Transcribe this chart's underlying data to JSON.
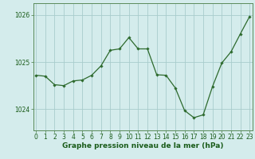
{
  "x": [
    0,
    1,
    2,
    3,
    4,
    5,
    6,
    7,
    8,
    9,
    10,
    11,
    12,
    13,
    14,
    15,
    16,
    17,
    18,
    19,
    20,
    21,
    22,
    23
  ],
  "y": [
    1024.72,
    1024.7,
    1024.52,
    1024.5,
    1024.6,
    1024.62,
    1024.72,
    1024.92,
    1025.25,
    1025.28,
    1025.52,
    1025.28,
    1025.28,
    1024.73,
    1024.72,
    1024.45,
    1023.97,
    1023.82,
    1023.88,
    1024.48,
    1024.98,
    1025.22,
    1025.6,
    1025.97
  ],
  "line_color": "#2d6a2d",
  "marker": "D",
  "marker_size": 1.8,
  "bg_color": "#d4ecec",
  "grid_color": "#a8cccc",
  "xlabel": "Graphe pression niveau de la mer (hPa)",
  "xlabel_fontsize": 6.5,
  "xlabel_color": "#1a5c1a",
  "tick_color": "#1a5c1a",
  "tick_fontsize": 5.5,
  "ylim": [
    1023.55,
    1026.25
  ],
  "yticks": [
    1024,
    1025,
    1026
  ],
  "xlim": [
    -0.3,
    23.3
  ],
  "xticks": [
    0,
    1,
    2,
    3,
    4,
    5,
    6,
    7,
    8,
    9,
    10,
    11,
    12,
    13,
    14,
    15,
    16,
    17,
    18,
    19,
    20,
    21,
    22,
    23
  ],
  "spine_color": "#5a8a5a",
  "linewidth": 0.9
}
